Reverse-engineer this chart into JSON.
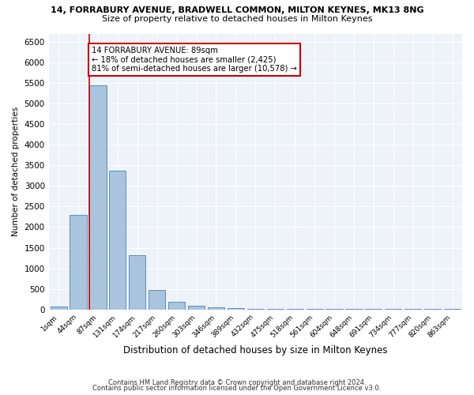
{
  "title_line1": "14, FORRABURY AVENUE, BRADWELL COMMON, MILTON KEYNES, MK13 8NG",
  "title_line2": "Size of property relative to detached houses in Milton Keynes",
  "xlabel": "Distribution of detached houses by size in Milton Keynes",
  "ylabel": "Number of detached properties",
  "categories": [
    "1sqm",
    "44sqm",
    "87sqm",
    "131sqm",
    "174sqm",
    "217sqm",
    "260sqm",
    "303sqm",
    "346sqm",
    "389sqm",
    "432sqm",
    "475sqm",
    "518sqm",
    "561sqm",
    "604sqm",
    "648sqm",
    "691sqm",
    "734sqm",
    "777sqm",
    "820sqm",
    "863sqm"
  ],
  "values": [
    70,
    2300,
    5450,
    3380,
    1310,
    480,
    195,
    100,
    60,
    40,
    20,
    10,
    5,
    5,
    5,
    5,
    5,
    5,
    5,
    5,
    5
  ],
  "bar_color": "#aac4de",
  "bar_edge_color": "#5a8fc0",
  "property_line_color": "#cc0000",
  "annotation_text": "14 FORRABURY AVENUE: 89sqm\n← 18% of detached houses are smaller (2,425)\n81% of semi-detached houses are larger (10,578) →",
  "annotation_box_color": "#ffffff",
  "annotation_box_edge": "#cc0000",
  "ylim": [
    0,
    6700
  ],
  "yticks": [
    0,
    500,
    1000,
    1500,
    2000,
    2500,
    3000,
    3500,
    4000,
    4500,
    5000,
    5500,
    6000,
    6500
  ],
  "background_color": "#eef2f9",
  "grid_color": "#ffffff",
  "footer_line1": "Contains HM Land Registry data © Crown copyright and database right 2024.",
  "footer_line2": "Contains public sector information licensed under the Open Government Licence v3.0."
}
